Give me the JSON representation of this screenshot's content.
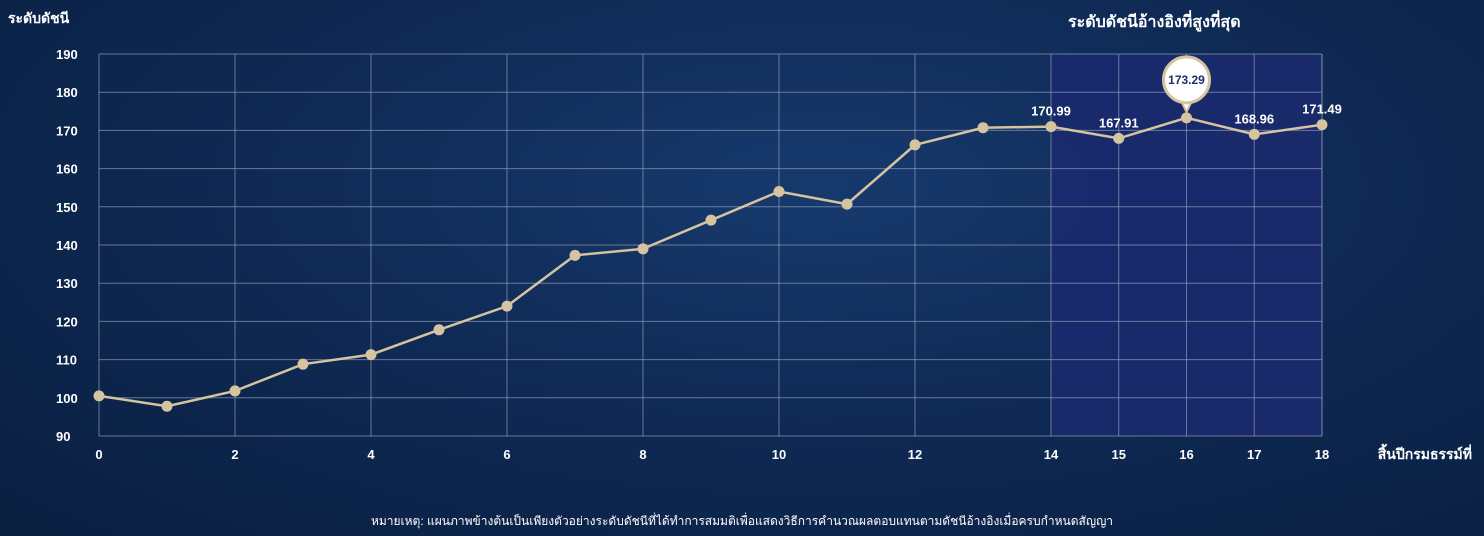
{
  "chart_data": {
    "type": "line",
    "title": "",
    "highlight_title": "ระดับดัชนีอ้างอิงที่สูงที่สุด",
    "ylabel": "ระดับดัชนี",
    "xlabel": "สิ้นปีกรมธรรม์ที่",
    "ylim": [
      90,
      190
    ],
    "yticks": [
      90,
      100,
      110,
      120,
      130,
      140,
      150,
      160,
      170,
      180,
      190
    ],
    "xtick_labels": [
      0,
      2,
      4,
      6,
      8,
      10,
      12,
      14,
      15,
      16,
      17,
      18
    ],
    "grid": true,
    "highlight_range": [
      14,
      18
    ],
    "x": [
      0,
      1,
      2,
      3,
      4,
      5,
      6,
      7,
      8,
      9,
      10,
      11,
      12,
      13,
      14,
      15,
      16,
      17,
      18
    ],
    "values": [
      100.5,
      97.8,
      101.8,
      108.8,
      111.3,
      117.8,
      124.0,
      137.3,
      139.0,
      146.5,
      154.0,
      150.7,
      166.2,
      170.7,
      170.99,
      167.91,
      173.29,
      168.96,
      171.49
    ],
    "data_labels": [
      {
        "x": 14,
        "text": "170.99"
      },
      {
        "x": 15,
        "text": "167.91"
      },
      {
        "x": 17,
        "text": "168.96"
      },
      {
        "x": 18,
        "text": "171.49"
      }
    ],
    "max_callout": {
      "x": 16,
      "text": "173.29"
    },
    "colors": {
      "line": "#d6c3a0",
      "highlight": "#1b2a6e",
      "grid": "#8c9bb5",
      "callout_border": "#d6c3a0",
      "callout_text": "#1b2f6b"
    }
  },
  "footnote": "หมายเหตุ: แผนภาพข้างต้นเป็นเพียงตัวอย่างระดับดัชนีที่ได้ทำการสมมติเพื่อแสดงวิธีการคำนวณผลตอบแทนตามดัชนีอ้างอิงเมื่อครบกำหนดสัญญา"
}
